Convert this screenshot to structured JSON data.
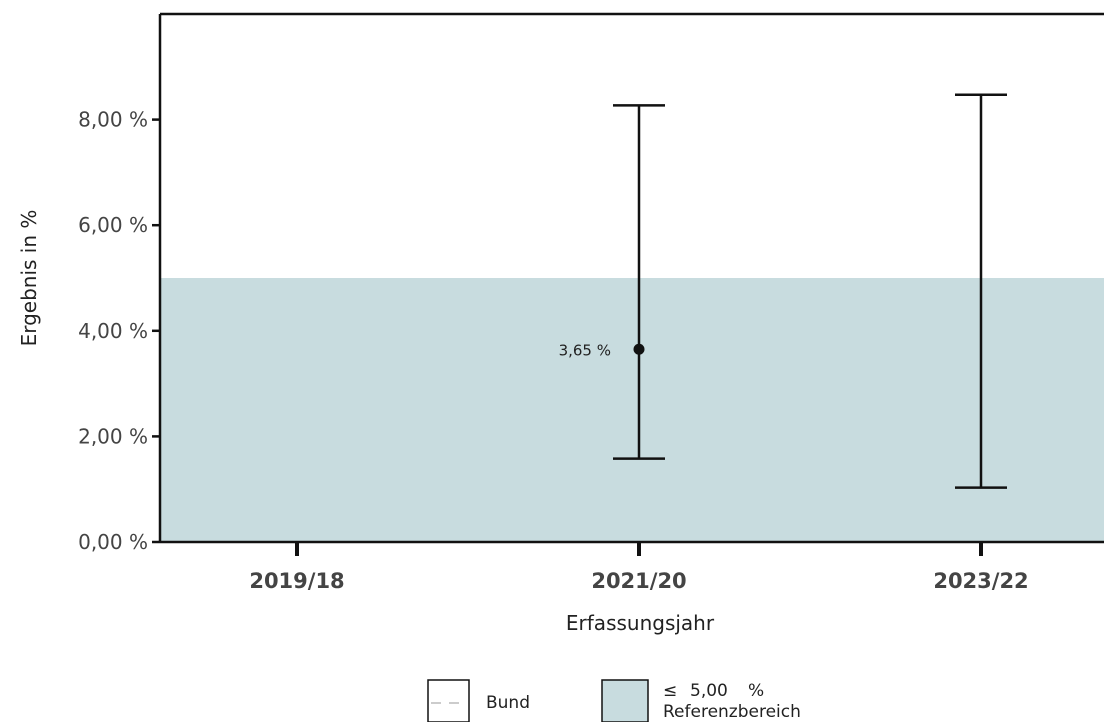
{
  "chart_data": {
    "type": "scatter",
    "xlabel": "Erfassungsjahr",
    "ylabel": "Ergebnis in %",
    "categories": [
      "2019/18",
      "2021/20",
      "2023/22"
    ],
    "ylim": [
      0,
      10
    ],
    "yticks": [
      0,
      2,
      4,
      6,
      8
    ],
    "ytick_labels": [
      "0,00 %",
      "2,00 %",
      "4,00 %",
      "6,00 %",
      "8,00 %"
    ],
    "series": [
      {
        "points": [
          {
            "category": "2021/20",
            "value": 3.65,
            "lower": 1.58,
            "upper": 8.27,
            "label": "3,65 %"
          },
          {
            "category": "2023/22",
            "value": null,
            "lower": 1.03,
            "upper": 8.47,
            "label": ""
          }
        ]
      }
    ],
    "reference_area": {
      "min": 0,
      "max": 5.0,
      "color": "#c8dcdf"
    },
    "grid": false,
    "legend": {
      "placement": "bottom",
      "items": [
        {
          "key": "bund",
          "label": "Bund",
          "line_color": "#cccccc"
        },
        {
          "key": "ref",
          "symbol": "≤",
          "value": "5,00",
          "unit": "%",
          "label": "Referenzbereich",
          "fill_color": "#c8dcdf"
        }
      ]
    }
  }
}
